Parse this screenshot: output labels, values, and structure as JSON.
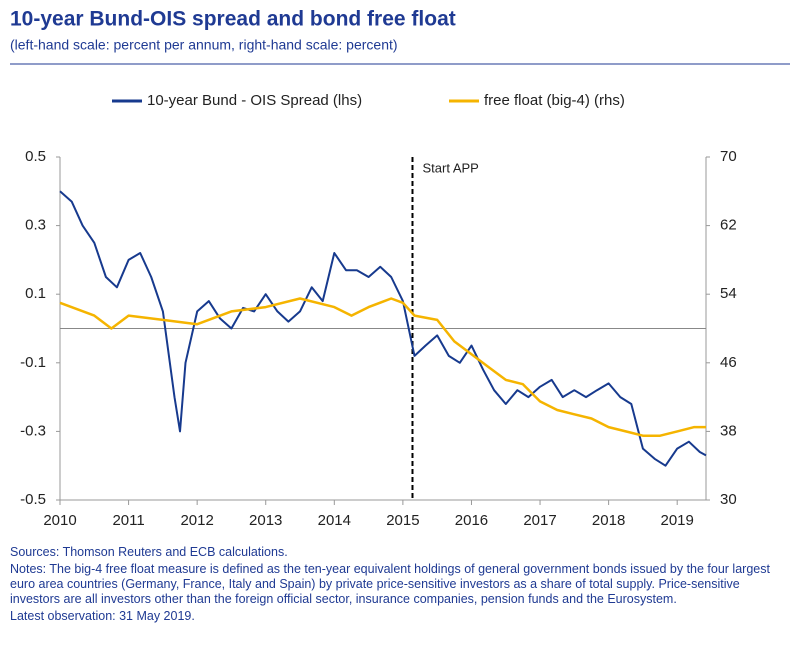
{
  "chart_data": {
    "type": "line",
    "title": "10-year Bund-OIS spread and bond free float",
    "subtitle": "(left-hand scale: percent per annum, right-hand scale: percent)",
    "series": [
      {
        "name": "10-year Bund - OIS Spread (lhs)",
        "color": "#173a8e",
        "axis": "y",
        "x": [
          2010.0,
          2010.17,
          2010.33,
          2010.5,
          2010.67,
          2010.83,
          2011.0,
          2011.17,
          2011.33,
          2011.5,
          2011.67,
          2011.75,
          2011.83,
          2012.0,
          2012.17,
          2012.33,
          2012.5,
          2012.67,
          2012.83,
          2013.0,
          2013.17,
          2013.33,
          2013.5,
          2013.67,
          2013.83,
          2014.0,
          2014.17,
          2014.33,
          2014.5,
          2014.67,
          2014.83,
          2015.0,
          2015.17,
          2015.33,
          2015.5,
          2015.67,
          2015.83,
          2016.0,
          2016.17,
          2016.33,
          2016.5,
          2016.67,
          2016.83,
          2017.0,
          2017.17,
          2017.33,
          2017.5,
          2017.67,
          2017.83,
          2018.0,
          2018.17,
          2018.33,
          2018.5,
          2018.67,
          2018.83,
          2019.0,
          2019.17,
          2019.33,
          2019.42
        ],
        "values": [
          0.4,
          0.37,
          0.3,
          0.25,
          0.15,
          0.12,
          0.2,
          0.22,
          0.15,
          0.05,
          -0.2,
          -0.3,
          -0.1,
          0.05,
          0.08,
          0.03,
          0.0,
          0.06,
          0.05,
          0.1,
          0.05,
          0.02,
          0.05,
          0.12,
          0.08,
          0.22,
          0.17,
          0.17,
          0.15,
          0.18,
          0.15,
          0.08,
          -0.08,
          -0.05,
          -0.02,
          -0.08,
          -0.1,
          -0.05,
          -0.12,
          -0.18,
          -0.22,
          -0.18,
          -0.2,
          -0.17,
          -0.15,
          -0.2,
          -0.18,
          -0.2,
          -0.18,
          -0.16,
          -0.2,
          -0.22,
          -0.35,
          -0.38,
          -0.4,
          -0.35,
          -0.33,
          -0.36,
          -0.37
        ]
      },
      {
        "name": "free float (big-4) (rhs)",
        "color": "#f5b400",
        "axis": "y2",
        "x": [
          2010.0,
          2010.5,
          2010.75,
          2011.0,
          2011.5,
          2012.0,
          2012.5,
          2013.0,
          2013.5,
          2014.0,
          2014.25,
          2014.5,
          2014.83,
          2015.0,
          2015.17,
          2015.5,
          2015.75,
          2016.0,
          2016.25,
          2016.5,
          2016.75,
          2017.0,
          2017.25,
          2017.5,
          2017.75,
          2018.0,
          2018.25,
          2018.5,
          2018.75,
          2019.0,
          2019.25,
          2019.42
        ],
        "values": [
          53,
          51.5,
          50,
          51.5,
          51,
          50.5,
          52,
          52.5,
          53.5,
          52.5,
          51.5,
          52.5,
          53.5,
          53,
          51.5,
          51,
          48.5,
          47,
          45.5,
          44,
          43.5,
          41.5,
          40.5,
          40,
          39.5,
          38.5,
          38,
          37.5,
          37.5,
          38,
          38.5,
          38.5
        ]
      }
    ],
    "xlim": [
      2010,
      2019.42
    ],
    "xticks": [
      2010,
      2011,
      2012,
      2013,
      2014,
      2015,
      2016,
      2017,
      2018,
      2019
    ],
    "ylim": [
      -0.5,
      0.5
    ],
    "yticks": [
      0.5,
      0.3,
      0.1,
      -0.1,
      -0.3,
      -0.5
    ],
    "y2lim": [
      30,
      70
    ],
    "y2ticks": [
      70,
      62,
      54,
      46,
      38,
      30
    ],
    "zero_line": 0,
    "annotation": {
      "text": "Start APP",
      "x": 2015.14
    },
    "sources": "Sources: Thomson Reuters and ECB calculations.",
    "notes": "Notes: The big-4 free float measure is defined as the ten-year equivalent holdings of general government bonds issued by the four largest euro area countries (Germany, France, Italy and Spain) by private price-sensitive investors as a share of total supply. Price-sensitive investors are all investors other than the foreign official sector, insurance companies, pension funds and the Eurosystem.",
    "latest_observation": "Latest observation: 31 May 2019."
  }
}
